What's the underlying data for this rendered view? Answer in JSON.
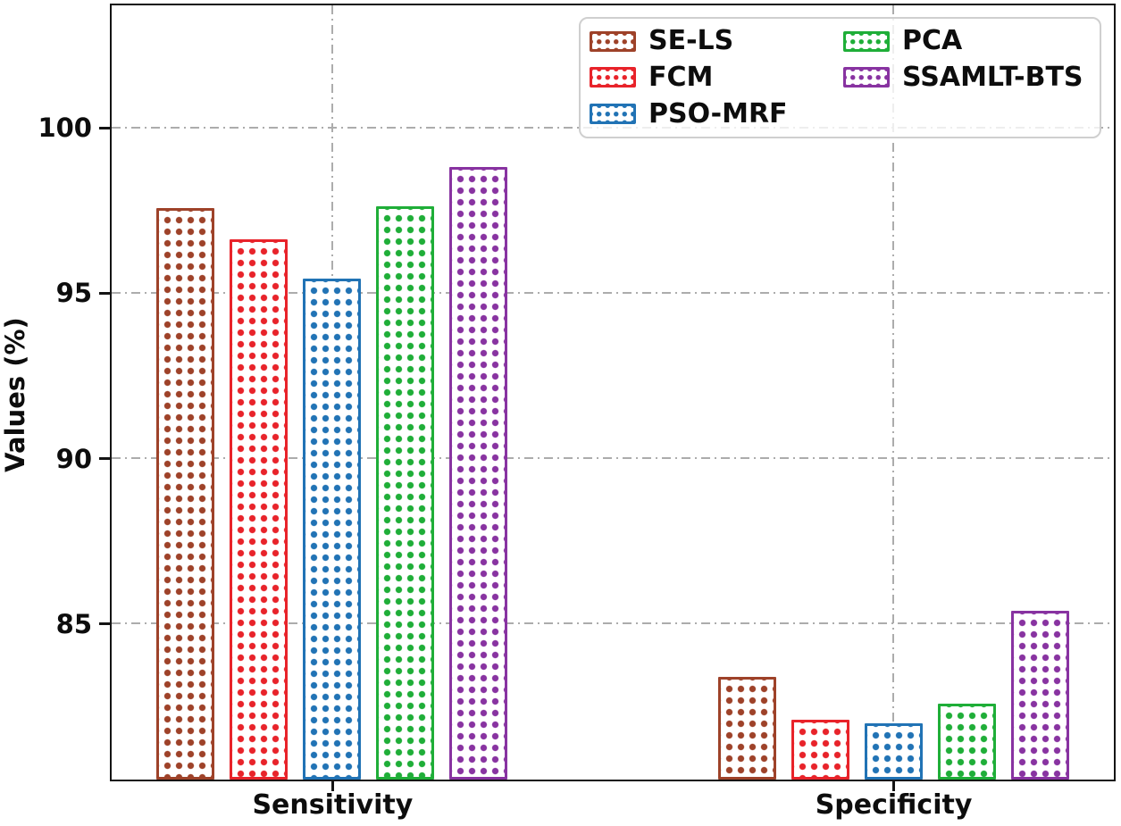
{
  "chart_data": {
    "type": "bar",
    "title": "",
    "xlabel": "",
    "ylabel": "Values (%)",
    "categories": [
      "Sensitivity",
      "Specificity"
    ],
    "series": [
      {
        "name": "SE-LS",
        "color": "#9E4229",
        "values": [
          97.6,
          83.4
        ]
      },
      {
        "name": "FCM",
        "color": "#E8232A",
        "values": [
          96.65,
          82.1
        ]
      },
      {
        "name": "PSO-MRF",
        "color": "#2173B5",
        "values": [
          95.45,
          82.0
        ]
      },
      {
        "name": "PCA",
        "color": "#1FAE38",
        "values": [
          97.65,
          82.6
        ]
      },
      {
        "name": "SSAMLT-BTS",
        "color": "#8833A1",
        "values": [
          98.85,
          85.4
        ]
      }
    ],
    "ylim": [
      80.3,
      103.7
    ],
    "yticks": [
      85,
      90,
      95,
      100
    ],
    "grid": {
      "style": "dash-dot",
      "color": "#acacac",
      "axes": "both"
    },
    "legend": {
      "position": "upper-right",
      "columns": 2,
      "swatch_pattern": "dots"
    },
    "hatch_pattern": "dots",
    "spine_color": "#141414"
  }
}
